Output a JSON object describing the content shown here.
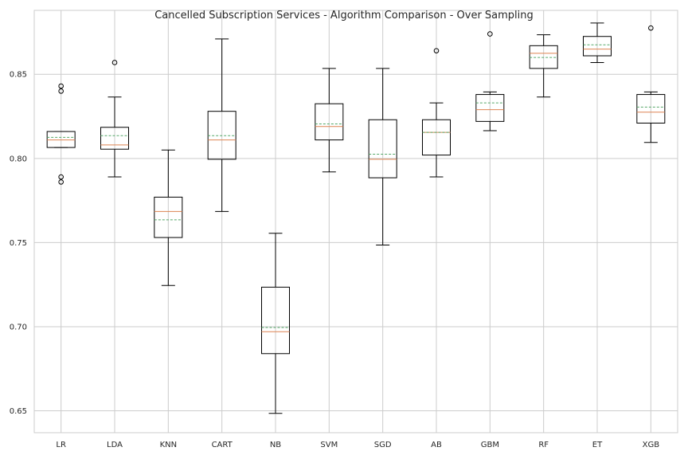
{
  "chart_data": {
    "type": "boxplot",
    "title": "Cancelled Subscription Services - Algorithm Comparison - Over Sampling",
    "xlabel": "",
    "ylabel": "",
    "ylim": [
      0.637,
      0.888
    ],
    "yticks": [
      "0.65",
      "0.70",
      "0.75",
      "0.80",
      "0.85"
    ],
    "ytick_values": [
      0.65,
      0.7,
      0.75,
      0.8,
      0.85
    ],
    "grid": true,
    "colors": {
      "box": "#000000",
      "median": "#dd8452",
      "mean": "#55a868",
      "grid": "#cccccc",
      "axes": "#cccccc"
    },
    "categories": [
      "LR",
      "LDA",
      "KNN",
      "CART",
      "NB",
      "SVM",
      "SGD",
      "AB",
      "GBM",
      "RF",
      "ET",
      "XGB"
    ],
    "boxes": [
      {
        "whislo": 0.8065,
        "q1": 0.8065,
        "med": 0.811,
        "mean": 0.8125,
        "q3": 0.816,
        "whishi": 0.816,
        "fliers": [
          0.843,
          0.84,
          0.789,
          0.786
        ]
      },
      {
        "whislo": 0.789,
        "q1": 0.8055,
        "med": 0.808,
        "mean": 0.8135,
        "q3": 0.8185,
        "whishi": 0.8365,
        "fliers": [
          0.857
        ]
      },
      {
        "whislo": 0.7245,
        "q1": 0.753,
        "med": 0.7685,
        "mean": 0.7635,
        "q3": 0.777,
        "whishi": 0.805,
        "fliers": []
      },
      {
        "whislo": 0.7685,
        "q1": 0.7995,
        "med": 0.811,
        "mean": 0.8135,
        "q3": 0.828,
        "whishi": 0.871,
        "fliers": []
      },
      {
        "whislo": 0.6485,
        "q1": 0.684,
        "med": 0.697,
        "mean": 0.6995,
        "q3": 0.7235,
        "whishi": 0.7555,
        "fliers": []
      },
      {
        "whislo": 0.792,
        "q1": 0.811,
        "med": 0.819,
        "mean": 0.8205,
        "q3": 0.8325,
        "whishi": 0.8535,
        "fliers": []
      },
      {
        "whislo": 0.7485,
        "q1": 0.7885,
        "med": 0.7995,
        "mean": 0.8025,
        "q3": 0.823,
        "whishi": 0.8535,
        "fliers": []
      },
      {
        "whislo": 0.789,
        "q1": 0.802,
        "med": 0.8155,
        "mean": 0.8155,
        "q3": 0.823,
        "whishi": 0.833,
        "fliers": [
          0.864
        ]
      },
      {
        "whislo": 0.8165,
        "q1": 0.822,
        "med": 0.829,
        "mean": 0.833,
        "q3": 0.838,
        "whishi": 0.8395,
        "fliers": [
          0.874
        ]
      },
      {
        "whislo": 0.8365,
        "q1": 0.8535,
        "med": 0.8625,
        "mean": 0.86,
        "q3": 0.867,
        "whishi": 0.8735,
        "fliers": []
      },
      {
        "whislo": 0.857,
        "q1": 0.861,
        "med": 0.865,
        "mean": 0.8675,
        "q3": 0.8725,
        "whishi": 0.8805,
        "fliers": []
      },
      {
        "whislo": 0.8095,
        "q1": 0.821,
        "med": 0.8275,
        "mean": 0.8305,
        "q3": 0.838,
        "whishi": 0.8395,
        "fliers": [
          0.8775
        ]
      }
    ]
  }
}
